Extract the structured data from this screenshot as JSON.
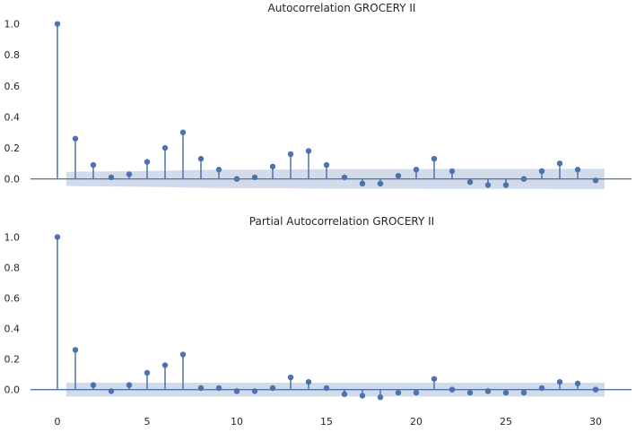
{
  "chart_data": [
    {
      "type": "stem",
      "title": "Autocorrelation GROCERY II",
      "xlabel": "",
      "ylabel": "",
      "x": [
        0,
        1,
        2,
        3,
        4,
        5,
        6,
        7,
        8,
        9,
        10,
        11,
        12,
        13,
        14,
        15,
        16,
        17,
        18,
        19,
        20,
        21,
        22,
        23,
        24,
        25,
        26,
        27,
        28,
        29,
        30
      ],
      "values": [
        1.0,
        0.26,
        0.09,
        0.01,
        0.03,
        0.11,
        0.2,
        0.3,
        0.13,
        0.06,
        0.0,
        0.01,
        0.08,
        0.16,
        0.18,
        0.09,
        0.01,
        -0.03,
        -0.03,
        0.02,
        0.06,
        0.13,
        0.05,
        -0.02,
        -0.04,
        -0.04,
        0.0,
        0.05,
        0.1,
        0.06,
        -0.01
      ],
      "confidence_band": [
        0.045,
        0.047,
        0.048,
        0.049,
        0.05,
        0.051,
        0.053,
        0.056,
        0.058,
        0.059,
        0.06,
        0.06,
        0.06,
        0.061,
        0.062,
        0.063,
        0.063,
        0.063,
        0.063,
        0.063,
        0.063,
        0.064,
        0.064,
        0.064,
        0.064,
        0.064,
        0.064,
        0.064,
        0.065,
        0.065,
        0.065
      ],
      "yticks": [
        "0.0",
        "0.2",
        "0.4",
        "0.6",
        "0.8",
        "1.0"
      ],
      "ylim": [
        -0.06,
        1.05
      ],
      "xlim": [
        -1.5,
        32
      ],
      "show_xticks": false,
      "grid": false,
      "colors": {
        "stem": "#4c72b0",
        "band": "#c5d2e5",
        "axis": "#4c72b0"
      }
    },
    {
      "type": "stem",
      "title": "Partial Autocorrelation GROCERY II",
      "xlabel": "",
      "ylabel": "",
      "x": [
        0,
        1,
        2,
        3,
        4,
        5,
        6,
        7,
        8,
        9,
        10,
        11,
        12,
        13,
        14,
        15,
        16,
        17,
        18,
        19,
        20,
        21,
        22,
        23,
        24,
        25,
        26,
        27,
        28,
        29,
        30
      ],
      "values": [
        1.0,
        0.26,
        0.03,
        -0.01,
        0.03,
        0.11,
        0.16,
        0.23,
        0.01,
        0.01,
        -0.01,
        -0.01,
        0.01,
        0.08,
        0.05,
        0.01,
        -0.03,
        -0.04,
        -0.05,
        -0.02,
        -0.02,
        0.07,
        0.0,
        -0.02,
        -0.01,
        -0.02,
        -0.02,
        0.01,
        0.05,
        0.04,
        0.0
      ],
      "confidence_band": [
        0.045,
        0.045,
        0.045,
        0.045,
        0.045,
        0.045,
        0.045,
        0.045,
        0.045,
        0.045,
        0.045,
        0.045,
        0.045,
        0.045,
        0.045,
        0.045,
        0.045,
        0.045,
        0.045,
        0.045,
        0.045,
        0.045,
        0.045,
        0.045,
        0.045,
        0.045,
        0.045,
        0.045,
        0.045,
        0.045,
        0.045
      ],
      "xticks": [
        "0",
        "5",
        "10",
        "15",
        "20",
        "25",
        "30"
      ],
      "yticks": [
        "0.0",
        "0.2",
        "0.4",
        "0.6",
        "0.8",
        "1.0"
      ],
      "ylim": [
        -0.09,
        1.05
      ],
      "xlim": [
        -1.5,
        32
      ],
      "show_xticks": true,
      "grid": false,
      "colors": {
        "stem": "#4c72b0",
        "band": "#c5d2e5",
        "axis": "#4c72b0"
      }
    }
  ]
}
